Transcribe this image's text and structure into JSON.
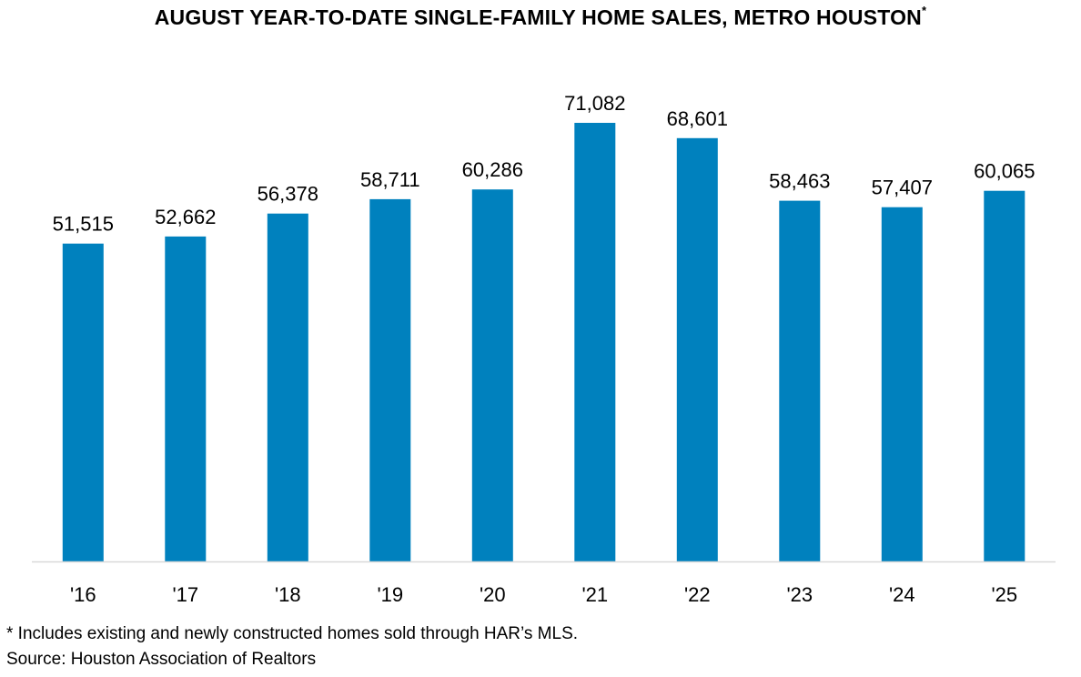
{
  "chart_data": {
    "type": "bar",
    "title": "AUGUST YEAR-TO-DATE SINGLE-FAMILY HOME SALES, METRO HOUSTON",
    "title_marker": "*",
    "categories": [
      "'16",
      "'17",
      "'18",
      "'19",
      "'20",
      "'21",
      "'22",
      "'23",
      "'24",
      "'25"
    ],
    "values": [
      51515,
      52662,
      56378,
      58711,
      60286,
      71082,
      68601,
      58463,
      57407,
      60065
    ],
    "data_labels": [
      "51,515",
      "52,662",
      "56,378",
      "58,711",
      "60,286",
      "71,082",
      "68,601",
      "58,463",
      "57,407",
      "60,065"
    ],
    "xlabel": "",
    "ylabel": "",
    "ylim": [
      0,
      75000
    ],
    "grid": false,
    "bar_color": "#0081BE",
    "axis_color": "#D9D9D9"
  },
  "footnotes": {
    "note": "* Includes existing and newly constructed homes sold through HAR’s MLS.",
    "source": "Source: Houston Association of Realtors"
  }
}
